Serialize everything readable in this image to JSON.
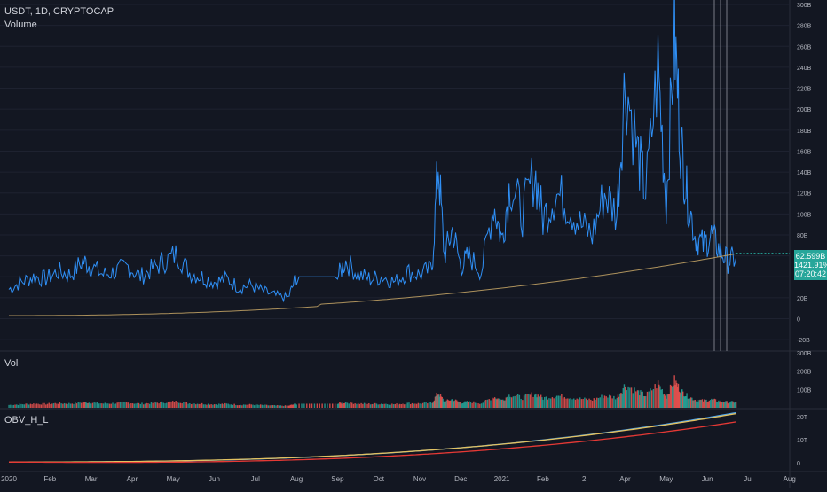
{
  "header": {
    "title": "USDT, 1D, CRYPTOCAP",
    "subtitle": "Volume"
  },
  "panes": {
    "vol_label": "Vol",
    "obv_label": "OBV_H_L"
  },
  "price_badge": {
    "value": "62.599B",
    "change": "1421.91%",
    "countdown": "07:20:42"
  },
  "colors": {
    "background": "#131722",
    "line": "#2f8ff5",
    "ma": "#e0b75a",
    "up": "#26a69a",
    "down": "#ef5350",
    "obv1": "#4aa3f0",
    "obv2": "#e3c15f",
    "obv3": "#e53935",
    "grid": "#1e2230"
  },
  "chart_data": [
    {
      "type": "line",
      "title": "USDT, 1D, CRYPTOCAP",
      "subtitle": "Volume",
      "y_unit": "B",
      "ylim": [
        -30,
        300
      ],
      "y_ticks": [
        "300B",
        "280B",
        "260B",
        "240B",
        "220B",
        "200B",
        "180B",
        "160B",
        "140B",
        "120B",
        "100B",
        "80B",
        "60B",
        "40B",
        "20B",
        "0",
        "-20B"
      ],
      "y_tick_values": [
        300,
        280,
        260,
        240,
        220,
        200,
        180,
        160,
        140,
        120,
        100,
        80,
        60,
        40,
        20,
        0,
        -20
      ],
      "x_ticks": [
        "2020",
        "Feb",
        "Mar",
        "Apr",
        "May",
        "Jun",
        "Jul",
        "Aug",
        "Sep",
        "Oct",
        "Nov",
        "Dec",
        "2021",
        "Feb",
        "2",
        "Apr",
        "May",
        "Jun",
        "Jul",
        "Aug"
      ],
      "x_tick_months": [
        0,
        1,
        2,
        3,
        4,
        5,
        6,
        7,
        8,
        9,
        10,
        11,
        12,
        13,
        14,
        15,
        16,
        17,
        18,
        19
      ],
      "series": [
        {
          "values_month_x": [
            0,
            0.3,
            0.6,
            0.9,
            1.2,
            1.5,
            1.8,
            2.0,
            2.3,
            2.6,
            2.9,
            3.2,
            3.5,
            3.8,
            4.1,
            4.4,
            4.7,
            5.0,
            5.3,
            5.6,
            5.9,
            6.2,
            6.5,
            6.8,
            7.0,
            7.5,
            8.0,
            8.2,
            8.5,
            8.8,
            9.1,
            9.4,
            9.7,
            10.0,
            10.3,
            10.45,
            10.6,
            10.8,
            11.0,
            11.2,
            11.5,
            11.8,
            12.0,
            12.2,
            12.5,
            12.8,
            13.0,
            13.3,
            13.6,
            13.9,
            14.2,
            14.5,
            14.8,
            15.0,
            15.3,
            15.5,
            15.8,
            16.0,
            16.2,
            16.35,
            16.5,
            16.7,
            16.9,
            17.1,
            17.3,
            17.5,
            17.7
          ],
          "values": [
            28,
            35,
            40,
            38,
            45,
            42,
            55,
            50,
            42,
            45,
            50,
            40,
            48,
            55,
            62,
            44,
            40,
            35,
            38,
            30,
            32,
            26,
            22,
            20,
            40,
            40,
            40,
            55,
            42,
            38,
            40,
            35,
            45,
            42,
            48,
            150,
            60,
            85,
            50,
            60,
            45,
            110,
            75,
            130,
            100,
            140,
            95,
            120,
            110,
            90,
            80,
            120,
            100,
            230,
            160,
            120,
            240,
            110,
            270,
            170,
            120,
            80,
            70,
            80,
            65,
            55,
            58
          ]
        }
      ],
      "moving_average": {
        "start": 3,
        "end": 60
      }
    },
    {
      "type": "bar",
      "title": "Vol",
      "ylim": [
        0,
        300
      ],
      "y_ticks": [
        "300B",
        "200B",
        "100B"
      ],
      "y_tick_values": [
        300,
        200,
        100
      ]
    },
    {
      "type": "line",
      "title": "OBV_H_L",
      "ylim": [
        0,
        22
      ],
      "y_ticks": [
        "20T",
        "10T",
        "0"
      ],
      "y_tick_values": [
        20,
        10,
        0
      ]
    }
  ]
}
